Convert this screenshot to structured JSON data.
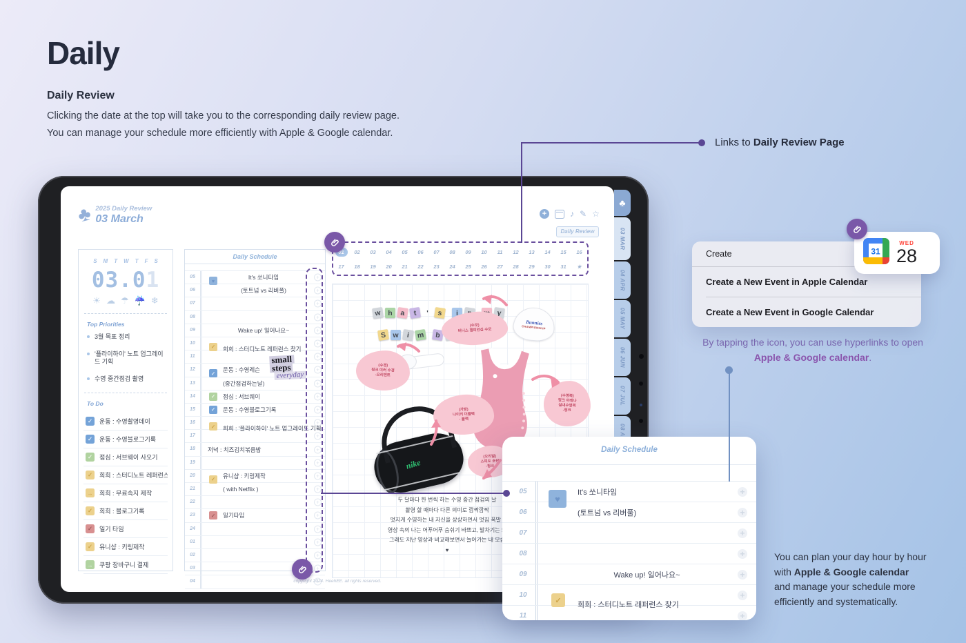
{
  "colors": {
    "accent_purple": "#5a4694",
    "badge_purple": "#7a58a8",
    "planner_blue": "#8fb2da",
    "tab_blue": "#b7cde9",
    "connector_blue": "#7191c2",
    "box_blue": "#74a3d8",
    "box_green": "#b1d3a0",
    "box_yellow": "#ecd18c",
    "box_red": "#d89090",
    "heart_blue": "#8fb3dc"
  },
  "intro": {
    "title": "Daily",
    "subtitle": "Daily Review",
    "line1": "Clicking the date at the top will take you to the corresponding daily review page.",
    "line2": "You can manage your schedule more efficiently with Apple & Google calendar."
  },
  "callouts": {
    "links_prefix": "Links to ",
    "links_bold": "Daily Review Page",
    "tap_line1": "By tapping the icon, you can use hyperlinks to open",
    "tap_bold": "Apple & Google calendar",
    "tap_suffix": ".",
    "plan_line1": "You can plan your day hour by hour",
    "plan_line2_prefix": "with ",
    "plan_line2_bold": "Apple & Google calendar",
    "plan_line3": "and manage your schedule more",
    "plan_line4": "efficiently and systematically."
  },
  "planner": {
    "logo_label": "2025 Daily Review",
    "date_title": "03 March",
    "toolbar_icons": [
      "add",
      "calendar",
      "music",
      "pencil",
      "star"
    ],
    "daily_review_button": "Daily Review",
    "side_tabs": [
      "03 MAR",
      "04 APR",
      "05 MAY",
      "06 JUN",
      "07 JUL",
      "08 AUG",
      "09 SEP"
    ],
    "weekdays": [
      "S",
      "M",
      "T",
      "W",
      "T",
      "F",
      "S"
    ],
    "clock_main": "03.0",
    "clock_dim": "1",
    "weather_icons": [
      "sun",
      "cloud",
      "umbrella",
      "rain",
      "snow"
    ],
    "priorities_title": "Top Priorities",
    "priorities": [
      "3월 목표 정리",
      "'플라이하이' 노트 업그레이드 기획",
      "수영 중간점검 촬영"
    ],
    "todo_title": "To Do",
    "todo": [
      {
        "color": "blue",
        "mark": "✓",
        "text": "운동 : 수영촬영데이"
      },
      {
        "color": "blue",
        "mark": "✓",
        "text": "운동 : 수영블로그기록"
      },
      {
        "color": "green",
        "mark": "✓",
        "text": "점심 : 서브웨이 사오기"
      },
      {
        "color": "yellow",
        "mark": "✓",
        "text": "희희 : 스터디노트 레퍼런스 찾기"
      },
      {
        "color": "yellow",
        "mark": "→",
        "text": "희희 : 무료속지 제작"
      },
      {
        "color": "yellow",
        "mark": "✓",
        "text": "희희 : 블로그기록"
      },
      {
        "color": "red",
        "mark": "✓",
        "text": "일기 타임"
      },
      {
        "color": "yellow",
        "mark": "✓",
        "text": "유니샵 : 키링제작"
      },
      {
        "color": "green",
        "mark": "→",
        "text": "쿠팡 장바구니 결제"
      }
    ],
    "schedule_title": "Daily Schedule",
    "schedule_rows": [
      {
        "h": "05",
        "text": "It's 쏘니타임",
        "box": "blue-heart",
        "straddle": true,
        "center": true
      },
      {
        "h": "06",
        "text": "(토트넘 vs 리버풀)",
        "center": true
      },
      {
        "h": "07"
      },
      {
        "h": "08"
      },
      {
        "h": "09",
        "text": "Wake up! 일어나요~",
        "center": true
      },
      {
        "h": "10",
        "text": "희희 : 스터디노트 레퍼런스 찾기",
        "box": "yellow",
        "straddle": true,
        "low": true
      },
      {
        "h": "11"
      },
      {
        "h": "12",
        "text": "운동 : 수영레슨",
        "box": "blue",
        "straddle": true
      },
      {
        "h": "13",
        "text": "(중간점검하는날)"
      },
      {
        "h": "14",
        "text": "점심 : 서브웨이",
        "box": "green"
      },
      {
        "h": "15",
        "text": "운동 : 수영블로그기록",
        "box": "blue"
      },
      {
        "h": "16",
        "text": "희희 : '플라이하이' 노트 업그레이드 기획",
        "box": "yellow",
        "straddle": true,
        "low": true
      },
      {
        "h": "17"
      },
      {
        "h": "18",
        "text": "저녁 : 치즈김치볶음밥",
        "flush": true
      },
      {
        "h": "19"
      },
      {
        "h": "20",
        "text": "유니샵 : 키링제작",
        "box": "yellow",
        "straddle": true
      },
      {
        "h": "21",
        "text": "( with Netflix )"
      },
      {
        "h": "22"
      },
      {
        "h": "23",
        "text": "일기타임",
        "box": "red"
      },
      {
        "h": "24"
      },
      {
        "h": "01"
      },
      {
        "h": "02"
      },
      {
        "h": "03"
      },
      {
        "h": "04"
      }
    ],
    "dates_row1": [
      "01",
      "02",
      "03",
      "04",
      "05",
      "06",
      "07",
      "08",
      "09",
      "10",
      "11",
      "12",
      "13",
      "14",
      "15",
      "16"
    ],
    "dates_row2": [
      "17",
      "18",
      "19",
      "20",
      "21",
      "22",
      "23",
      "24",
      "25",
      "26",
      "27",
      "28",
      "29",
      "30",
      "31",
      "★"
    ],
    "selected_date": "01",
    "sticker_line1": "small",
    "sticker_line2": "steps",
    "sticker_line3": "everyday",
    "copyright": "copyright 2024. HeehEE. all rights reserved."
  },
  "collage": {
    "tiles_row1": [
      {
        "c": "w",
        "bg": "#d2d6db"
      },
      {
        "c": "h",
        "bg": "#abd5a6"
      },
      {
        "c": "a",
        "bg": "#f5bcca"
      },
      {
        "c": "t",
        "bg": "#c9b7e5"
      },
      {
        "c": "'",
        "bg": ""
      },
      {
        "c": "s",
        "bg": "#f2d88d"
      },
      {
        "sp": true
      },
      {
        "c": "i",
        "bg": "#a9c7eb"
      },
      {
        "c": "n",
        "bg": "#d2d6db"
      },
      {
        "sp": true
      },
      {
        "c": "m",
        "bg": "#f5bcca"
      },
      {
        "c": "y",
        "bg": "#d2d6db"
      }
    ],
    "tiles_row2": [
      {
        "c": "S",
        "bg": "#f2d88d"
      },
      {
        "c": "w",
        "bg": "#a9c7eb"
      },
      {
        "c": "i",
        "bg": "#d2d6db"
      },
      {
        "c": "m",
        "bg": "#abd5a6"
      },
      {
        "sp": true
      },
      {
        "c": "b",
        "bg": "#c9b7e5"
      },
      {
        "c": "a",
        "bg": "#d2d6db"
      },
      {
        "c": "g",
        "bg": "#f5bcca"
      },
      {
        "sp": true
      },
      {
        "c": "♥",
        "bg": "#a9c7eb",
        "heart": true
      }
    ],
    "cap_line1": "Bunnies",
    "cap_line2": "CHAMPIONSHIP",
    "bag_brand": "nike",
    "bubbles": [
      {
        "lines": [
          "(수모)",
          "버니스 챔피언십 수모"
        ]
      },
      {
        "lines": [
          "(수경)",
          "핑크 미러 수경",
          "-오리엔트"
        ]
      },
      {
        "lines": [
          "(가방)",
          "나이키 더플백",
          "- 블랙"
        ]
      },
      {
        "lines": [
          "(수영복)",
          "핑크 아레나",
          "실내수영복",
          "-핑크"
        ]
      },
      {
        "lines": [
          "(오리발)",
          "스피도 숏핀",
          "-핑크"
        ]
      }
    ],
    "journal_lines": [
      "두 달마다 한 번씩 하는 수영 중간 점검의 날",
      "촬영 할 때마다 다른 의미로 깜짝깜짝",
      "멋지게 수영하는 내 자신을 상상하면서 멋짐 폭발 !",
      "영상 속의 나는 어푸어푸 숨쉬기 바쁘고, 발차기는 또",
      "그래도 지난 영상과 비교해보면서 늘어가는 내 모습",
      "♥"
    ]
  },
  "create_menu": {
    "title": "Create",
    "items": [
      "Create a New Event in Apple Calendar",
      "Create a New Event in Google Calendar"
    ]
  },
  "calendar_card": {
    "google_day": "31",
    "apple_weekday": "WED",
    "apple_day": "28"
  },
  "popup": {
    "title": "Daily Schedule",
    "rows": [
      {
        "h": "05",
        "text": "It's 쏘니타임",
        "box": "blue-heart",
        "straddle": true
      },
      {
        "h": "06",
        "text": "(토트넘 vs 리버풀)"
      },
      {
        "h": "07"
      },
      {
        "h": "08"
      },
      {
        "h": "09",
        "text": "Wake up! 일어나요~",
        "center": true
      },
      {
        "h": "10",
        "text": "희희 : 스터디노트 래퍼런스 찾기",
        "box": "yellow",
        "straddle": true,
        "low": true
      },
      {
        "h": "11"
      }
    ]
  }
}
